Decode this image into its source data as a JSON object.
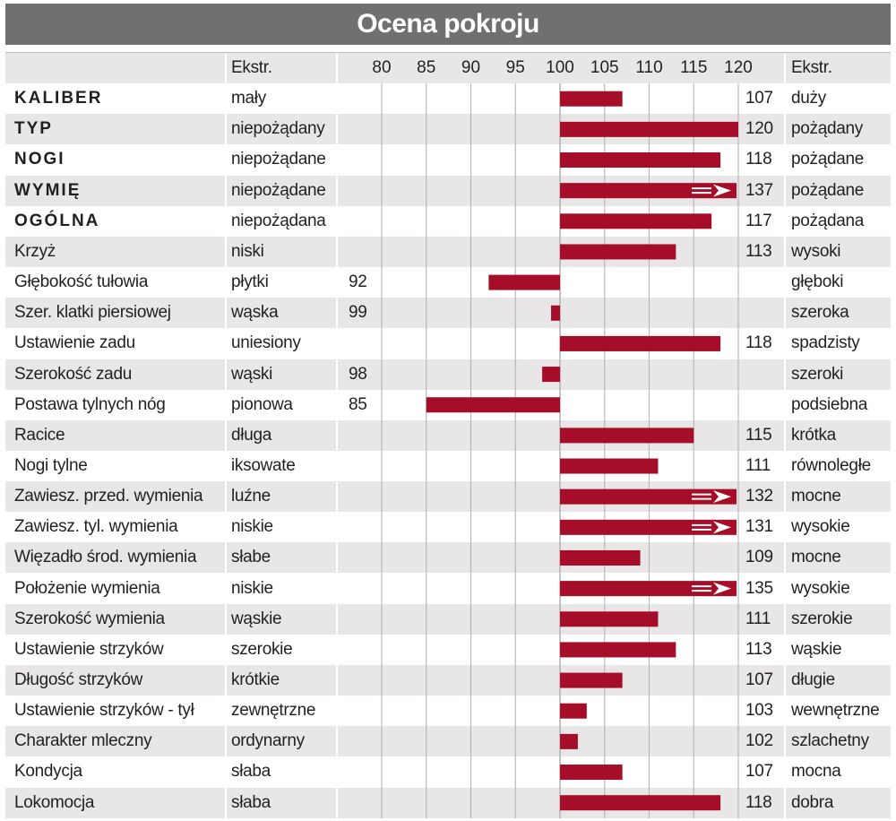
{
  "title": "Ocena pokroju",
  "header": {
    "left_extreme": "Ekstr.",
    "right_extreme": "Ekstr."
  },
  "colors": {
    "bar": "#a50d28",
    "title_bg": "#707070",
    "shade": "#e8e6e7",
    "grid": "#b4b4b4"
  },
  "chart_data": {
    "type": "bar",
    "orientation": "horizontal",
    "title": "Ocena pokroju",
    "xlim": [
      80,
      120
    ],
    "baseline": 100,
    "ticks": [
      80,
      85,
      90,
      95,
      100,
      105,
      110,
      115,
      120
    ],
    "grid": true,
    "rows": [
      {
        "name": "KALIBER",
        "bold": true,
        "left": "mały",
        "right": "duży",
        "value": 107
      },
      {
        "name": "TYP",
        "bold": true,
        "left": "niepożądany",
        "right": "pożądany",
        "value": 120
      },
      {
        "name": "NOGI",
        "bold": true,
        "left": "niepożądane",
        "right": "pożądane",
        "value": 118
      },
      {
        "name": "WYMIĘ",
        "bold": true,
        "left": "niepożądane",
        "right": "pożądane",
        "value": 137
      },
      {
        "name": "OGÓLNA",
        "bold": true,
        "left": "niepożądana",
        "right": "pożądana",
        "value": 117
      },
      {
        "name": "Krzyż",
        "bold": false,
        "left": "niski",
        "right": "wysoki",
        "value": 113
      },
      {
        "name": "Głębokość tułowia",
        "bold": false,
        "left": "płytki",
        "right": "głęboki",
        "value": 92
      },
      {
        "name": "Szer. klatki piersiowej",
        "bold": false,
        "left": "wąska",
        "right": "szeroka",
        "value": 99
      },
      {
        "name": "Ustawienie zadu",
        "bold": false,
        "left": "uniesiony",
        "right": "spadzisty",
        "value": 118
      },
      {
        "name": "Szerokość zadu",
        "bold": false,
        "left": "wąski",
        "right": "szeroki",
        "value": 98
      },
      {
        "name": "Postawa tylnych nóg",
        "bold": false,
        "left": "pionowa",
        "right": "podsiebna",
        "value": 85
      },
      {
        "name": "Racice",
        "bold": false,
        "left": "długa",
        "right": "krótka",
        "value": 115
      },
      {
        "name": "Nogi tylne",
        "bold": false,
        "left": "iksowate",
        "right": "równoległe",
        "value": 111
      },
      {
        "name": "Zawiesz. przed. wymienia",
        "bold": false,
        "left": "luźne",
        "right": "mocne",
        "value": 132
      },
      {
        "name": "Zawiesz. tyl. wymienia",
        "bold": false,
        "left": "niskie",
        "right": "wysokie",
        "value": 131
      },
      {
        "name": "Więzadło środ. wymienia",
        "bold": false,
        "left": "słabe",
        "right": "mocne",
        "value": 109
      },
      {
        "name": "Położenie wymienia",
        "bold": false,
        "left": "niskie",
        "right": "wysokie",
        "value": 135
      },
      {
        "name": "Szerokość wymienia",
        "bold": false,
        "left": "wąskie",
        "right": "szerokie",
        "value": 111
      },
      {
        "name": "Ustawienie strzyków",
        "bold": false,
        "left": "szerokie",
        "right": "wąskie",
        "value": 113
      },
      {
        "name": "Długość strzyków",
        "bold": false,
        "left": "krótkie",
        "right": "długie",
        "value": 107
      },
      {
        "name": "Ustawienie strzyków - tył",
        "bold": false,
        "left": "zewnętrzne",
        "right": "wewnętrzne",
        "value": 103
      },
      {
        "name": "Charakter mleczny",
        "bold": false,
        "left": "ordynarny",
        "right": "szlachetny",
        "value": 102
      },
      {
        "name": "Kondycja",
        "bold": false,
        "left": "słaba",
        "right": "mocna",
        "value": 107
      },
      {
        "name": "Lokomocja",
        "bold": false,
        "left": "słaba",
        "right": "dobra",
        "value": 118
      }
    ]
  }
}
